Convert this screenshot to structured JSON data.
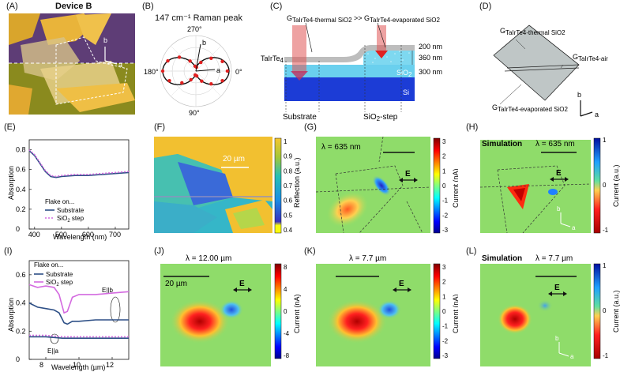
{
  "panels": {
    "A": {
      "label": "(A)",
      "title": "Device B",
      "axis_b": "b",
      "axis_a": "a"
    },
    "B": {
      "label": "(B)",
      "title": "147 cm⁻¹ Raman peak",
      "angle_top": "270°",
      "angle_left": "180°",
      "angle_right": "0°",
      "angle_bottom": "90°",
      "axis_b": "b",
      "axis_a": "a"
    },
    "C": {
      "label": "(C)",
      "title_left": "G",
      "title_left_sub": "TaIrTe4-thermal SiO2",
      "title_mid": ">> G",
      "title_mid_sub": "TaIrTe4-evaporated SiO2",
      "h1": "200 nm",
      "h2": "360 nm",
      "h3": "300 nm",
      "taire": "TaIrTe",
      "taire_sub": "4",
      "sio": "SiO",
      "sio_sub": "2",
      "si": "Si",
      "substrate": "Substrate",
      "step": "SiO",
      "step_sub": "2",
      "step_suffix": "-step"
    },
    "D": {
      "label": "(D)",
      "g_top": "G",
      "g_top_sub": "TaIrTe4-thermal SiO2",
      "g_air": "G",
      "g_air_sub": "TaIrTe4-air",
      "g_bot": "G",
      "g_bot_sub": "TaIrTe4-evaporated SiO2",
      "axis_b": "b",
      "axis_a": "a"
    },
    "E": {
      "label": "(E)",
      "ylabel": "Absorption",
      "xlabel": "Wavelength (nm)",
      "legend_title": "Flake on...",
      "legend_1": "Substrate",
      "legend_2": "SiO",
      "legend_2_sub": "2",
      "legend_2_suffix": " step"
    },
    "F": {
      "label": "(F)",
      "scalebar": "20 µm",
      "cbar_label": "Reflection (a.u.)",
      "cbar_ticks": [
        "1",
        "0.9",
        "0.8",
        "0.7",
        "0.6",
        "0.5",
        "0.4"
      ]
    },
    "G": {
      "label": "(G)",
      "lambda": "λ = 635 nm",
      "e_label": "E",
      "cbar_label": "Current (nA)",
      "cbar_ticks": [
        "3",
        "2",
        "1",
        "0",
        "-1",
        "-2",
        "-3"
      ]
    },
    "H": {
      "label": "(H)",
      "title": "Simulation",
      "lambda": "λ = 635 nm",
      "e_label": "E",
      "cbar_label": "Current (a.u.)",
      "cbar_ticks": [
        "1",
        "0",
        "-1"
      ],
      "axis_b": "b",
      "axis_a": "a"
    },
    "I": {
      "label": "(I)",
      "ylabel": "Absorption",
      "xlabel": "Wavelength (µm)",
      "legend_title": "Flake on...",
      "legend_1": "Substrate",
      "legend_2": "SiO",
      "legend_2_sub": "2",
      "legend_2_suffix": " step",
      "ann_b": "E||b",
      "ann_a": "E||a"
    },
    "J": {
      "label": "(J)",
      "lambda": "λ = 12.00 µm",
      "scalebar": "20 µm",
      "e_label": "E",
      "cbar_label": "Current (nA)",
      "cbar_ticks": [
        "8",
        "4",
        "0",
        "-4",
        "-8"
      ]
    },
    "K": {
      "label": "(K)",
      "lambda": "λ = 7.7 µm",
      "e_label": "E",
      "cbar_label": "Current (nA)",
      "cbar_ticks": [
        "3",
        "2",
        "1",
        "0",
        "-1",
        "-2",
        "-3"
      ]
    },
    "L": {
      "label": "(L)",
      "title": "Simulation",
      "lambda": "λ = 7.7 µm",
      "e_label": "E",
      "cbar_label": "Current (a.u.)",
      "cbar_ticks": [
        "1",
        "0",
        "-1"
      ],
      "axis_b": "b",
      "axis_a": "a"
    }
  },
  "chart_data": [
    {
      "type": "line",
      "panel": "E",
      "xlim": [
        380,
        750
      ],
      "ylim": [
        0,
        0.9
      ],
      "xticks": [
        400,
        500,
        600,
        700
      ],
      "yticks": [
        0,
        0.2,
        0.4,
        0.6,
        0.8
      ],
      "xlabel": "Wavelength (nm)",
      "ylabel": "Absorption",
      "series": [
        {
          "name": "Substrate",
          "color": "#2d4f86",
          "x": [
            380,
            400,
            420,
            440,
            460,
            480,
            500,
            550,
            600,
            650,
            700,
            750
          ],
          "y": [
            0.79,
            0.74,
            0.66,
            0.58,
            0.53,
            0.52,
            0.53,
            0.54,
            0.54,
            0.55,
            0.56,
            0.57
          ]
        },
        {
          "name": "SiO2 step",
          "color": "#d46be0",
          "x": [
            380,
            400,
            420,
            440,
            460,
            480,
            500,
            550,
            600,
            650,
            700,
            750
          ],
          "y": [
            0.8,
            0.75,
            0.67,
            0.59,
            0.54,
            0.53,
            0.54,
            0.55,
            0.55,
            0.56,
            0.57,
            0.58
          ]
        }
      ]
    },
    {
      "type": "line",
      "panel": "I",
      "xlim": [
        7,
        13
      ],
      "ylim": [
        0,
        0.7
      ],
      "xticks": [
        8,
        10,
        12
      ],
      "yticks": [
        0,
        0.2,
        0.4,
        0.6
      ],
      "xlabel": "Wavelength (µm)",
      "ylabel": "Absorption",
      "series": [
        {
          "name": "Substrate (E||b)",
          "color": "#2d4f86",
          "x": [
            7,
            7.5,
            8,
            8.5,
            8.8,
            9.1,
            9.3,
            9.6,
            10,
            11,
            12,
            13
          ],
          "y": [
            0.4,
            0.37,
            0.36,
            0.35,
            0.33,
            0.26,
            0.25,
            0.27,
            0.27,
            0.28,
            0.28,
            0.28
          ]
        },
        {
          "name": "SiO2 step (E||b)",
          "color": "#d46be0",
          "x": [
            7,
            7.5,
            8,
            8.5,
            8.8,
            9.1,
            9.3,
            9.6,
            10,
            11,
            12,
            13
          ],
          "y": [
            0.53,
            0.51,
            0.52,
            0.51,
            0.46,
            0.33,
            0.34,
            0.44,
            0.46,
            0.46,
            0.47,
            0.48
          ]
        },
        {
          "name": "Substrate (E||a)",
          "color": "#2d4f86",
          "x": [
            7,
            8,
            9,
            10,
            11,
            12,
            13
          ],
          "y": [
            0.16,
            0.16,
            0.15,
            0.15,
            0.15,
            0.15,
            0.15
          ]
        },
        {
          "name": "SiO2 step (E||a)",
          "color": "#d46be0",
          "x": [
            7,
            8,
            9,
            10,
            11,
            12,
            13
          ],
          "y": [
            0.17,
            0.17,
            0.16,
            0.16,
            0.16,
            0.16,
            0.16
          ]
        }
      ]
    },
    {
      "type": "scatter",
      "panel": "B",
      "title": "147 cm-1 Raman peak",
      "angles_deg": [
        0,
        20,
        40,
        60,
        80,
        100,
        120,
        140,
        160,
        180,
        200,
        220,
        240,
        260,
        280,
        300,
        320,
        340
      ],
      "values": [
        0.95,
        0.85,
        0.6,
        0.35,
        0.15,
        0.12,
        0.3,
        0.55,
        0.85,
        1.0,
        0.9,
        0.65,
        0.35,
        0.15,
        0.12,
        0.3,
        0.6,
        0.85
      ]
    }
  ]
}
